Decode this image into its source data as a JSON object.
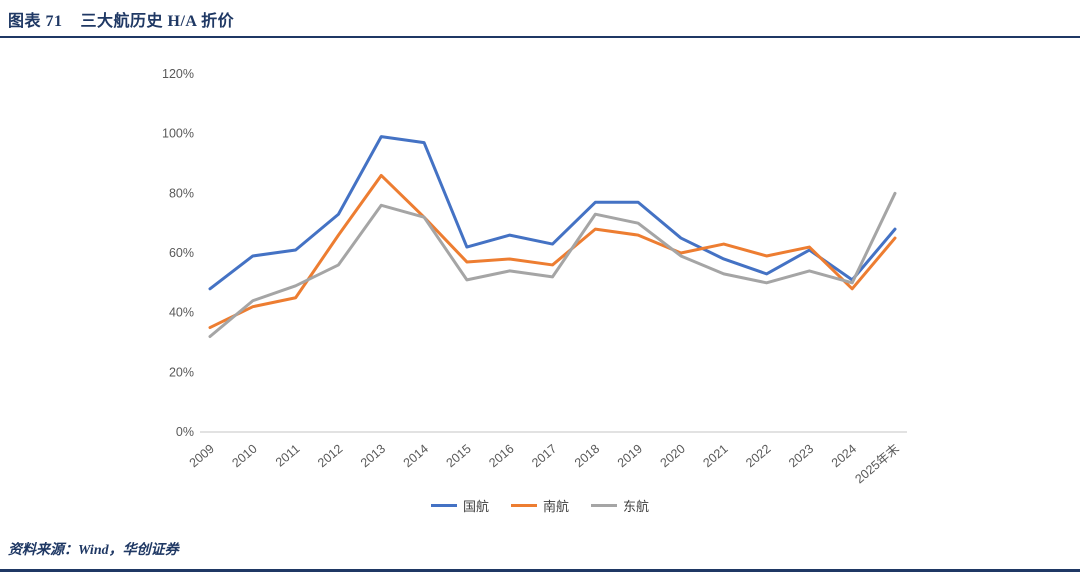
{
  "header": {
    "label": "图表 71",
    "title": "三大航历史 H/A 折价"
  },
  "footer": {
    "source": "资料来源：Wind，华创证券"
  },
  "chart_data": {
    "type": "line",
    "title": "三大航历史 H/A 折价",
    "xlabel": "",
    "ylabel": "",
    "ylim": [
      0,
      120
    ],
    "yticks": [
      0,
      20,
      40,
      60,
      80,
      100,
      120
    ],
    "ytick_format": "percent",
    "grid": false,
    "legend_position": "bottom",
    "categories": [
      "2009",
      "2010",
      "2011",
      "2012",
      "2013",
      "2014",
      "2015",
      "2016",
      "2017",
      "2018",
      "2019",
      "2020",
      "2021",
      "2022",
      "2023",
      "2024",
      "2025年末"
    ],
    "series": [
      {
        "name": "国航",
        "color": "#4472C4",
        "values": [
          48,
          59,
          61,
          73,
          99,
          97,
          62,
          66,
          63,
          77,
          77,
          65,
          58,
          53,
          61,
          51,
          68
        ]
      },
      {
        "name": "南航",
        "color": "#ED7D31",
        "values": [
          35,
          42,
          45,
          66,
          86,
          72,
          57,
          58,
          56,
          68,
          66,
          60,
          63,
          59,
          62,
          48,
          65
        ]
      },
      {
        "name": "东航",
        "color": "#A5A5A5",
        "values": [
          32,
          44,
          49,
          56,
          76,
          72,
          51,
          54,
          52,
          73,
          70,
          59,
          53,
          50,
          54,
          50,
          80
        ]
      }
    ]
  }
}
